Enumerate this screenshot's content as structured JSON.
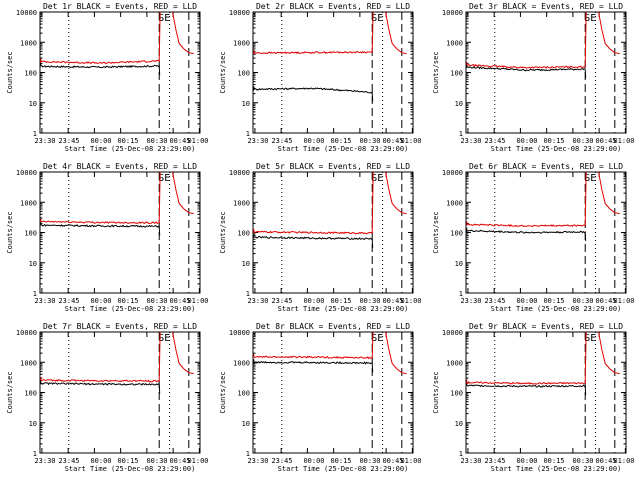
{
  "figure": {
    "background": "#ffffff"
  },
  "colors": {
    "events": "#000000",
    "lld": "#e00000",
    "axes": "#000000"
  },
  "chart_data": [
    {
      "type": "line",
      "title": "Det 1r BLACK = Events, RED = LLD",
      "xlabel": "Start Time (25-Dec-08 23:29:00)",
      "ylabel": "Counts/sec",
      "yscale": "log",
      "ylim": [
        1,
        10000
      ],
      "x_tick_labels": [
        "23:30",
        "23:45",
        "00:00",
        "00:15",
        "00:30",
        "00:45",
        "01:00"
      ],
      "y_tick_labels": [
        "1",
        "10",
        "100",
        "1000",
        "10000"
      ],
      "annotations": [
        "SE"
      ],
      "series": [
        {
          "color": "#000000",
          "start": 160,
          "mid": 150,
          "end": 165
        },
        {
          "color": "#e00000",
          "start": 230,
          "mid": 205,
          "end": 240
        }
      ]
    },
    {
      "type": "line",
      "title": "Det 2r BLACK = Events, RED = LLD",
      "xlabel": "Start Time (25-Dec-08 23:29:00)",
      "ylabel": "Counts/sec",
      "yscale": "log",
      "ylim": [
        1,
        10000
      ],
      "x_tick_labels": [
        "23:30",
        "23:45",
        "00:00",
        "00:15",
        "00:30",
        "00:45",
        "01:00"
      ],
      "y_tick_labels": [
        "1",
        "10",
        "100",
        "1000",
        "10000"
      ],
      "annotations": [
        "SE"
      ],
      "series": [
        {
          "color": "#000000",
          "start": 28,
          "mid": 30,
          "end": 22
        },
        {
          "color": "#e00000",
          "start": 440,
          "mid": 460,
          "end": 470
        }
      ]
    },
    {
      "type": "line",
      "title": "Det 3r BLACK = Events, RED = LLD",
      "xlabel": "Start Time (25-Dec-08 23:29:00)",
      "ylabel": "Counts/sec",
      "yscale": "log",
      "ylim": [
        1,
        10000
      ],
      "x_tick_labels": [
        "23:30",
        "23:45",
        "00:00",
        "00:15",
        "00:30",
        "00:45",
        "01:00"
      ],
      "y_tick_labels": [
        "1",
        "10",
        "100",
        "1000",
        "10000"
      ],
      "annotations": [
        "SE"
      ],
      "series": [
        {
          "color": "#000000",
          "start": 150,
          "mid": 120,
          "end": 130
        },
        {
          "color": "#e00000",
          "start": 175,
          "mid": 145,
          "end": 155
        }
      ]
    },
    {
      "type": "line",
      "title": "Det 4r BLACK = Events, RED = LLD",
      "xlabel": "Start Time (25-Dec-08 23:29:00)",
      "ylabel": "Counts/sec",
      "yscale": "log",
      "ylim": [
        1,
        10000
      ],
      "x_tick_labels": [
        "23:30",
        "23:45",
        "00:00",
        "00:15",
        "00:30",
        "00:45",
        "01:00"
      ],
      "y_tick_labels": [
        "1",
        "10",
        "100",
        "1000",
        "10000"
      ],
      "annotations": [
        "SE"
      ],
      "series": [
        {
          "color": "#000000",
          "start": 175,
          "mid": 165,
          "end": 160
        },
        {
          "color": "#e00000",
          "start": 230,
          "mid": 215,
          "end": 210
        }
      ]
    },
    {
      "type": "line",
      "title": "Det 5r BLACK = Events, RED = LLD",
      "xlabel": "Start Time (25-Dec-08 23:29:00)",
      "ylabel": "Counts/sec",
      "yscale": "log",
      "ylim": [
        1,
        10000
      ],
      "x_tick_labels": [
        "23:30",
        "23:45",
        "00:00",
        "00:15",
        "00:30",
        "00:45",
        "01:00"
      ],
      "y_tick_labels": [
        "1",
        "10",
        "100",
        "1000",
        "10000"
      ],
      "annotations": [
        "SE"
      ],
      "series": [
        {
          "color": "#000000",
          "start": 70,
          "mid": 65,
          "end": 62
        },
        {
          "color": "#e00000",
          "start": 105,
          "mid": 100,
          "end": 95
        }
      ]
    },
    {
      "type": "line",
      "title": "Det 6r BLACK = Events, RED = LLD",
      "xlabel": "Start Time (25-Dec-08 23:29:00)",
      "ylabel": "Counts/sec",
      "yscale": "log",
      "ylim": [
        1,
        10000
      ],
      "x_tick_labels": [
        "23:30",
        "23:45",
        "00:00",
        "00:15",
        "00:30",
        "00:45",
        "01:00"
      ],
      "y_tick_labels": [
        "1",
        "10",
        "100",
        "1000",
        "10000"
      ],
      "annotations": [
        "SE"
      ],
      "series": [
        {
          "color": "#000000",
          "start": 115,
          "mid": 100,
          "end": 105
        },
        {
          "color": "#e00000",
          "start": 185,
          "mid": 165,
          "end": 170
        }
      ]
    },
    {
      "type": "line",
      "title": "Det 7r BLACK = Events, RED = LLD",
      "xlabel": "Start Time (25-Dec-08 23:29:00)",
      "ylabel": "Counts/sec",
      "yscale": "log",
      "ylim": [
        1,
        10000
      ],
      "x_tick_labels": [
        "23:30",
        "23:45",
        "00:00",
        "00:15",
        "00:30",
        "00:45",
        "01:00"
      ],
      "y_tick_labels": [
        "1",
        "10",
        "100",
        "1000",
        "10000"
      ],
      "annotations": [
        "SE"
      ],
      "series": [
        {
          "color": "#000000",
          "start": 200,
          "mid": 190,
          "end": 185
        },
        {
          "color": "#e00000",
          "start": 255,
          "mid": 245,
          "end": 240
        }
      ]
    },
    {
      "type": "line",
      "title": "Det 8r BLACK = Events, RED = LLD",
      "xlabel": "Start Time (25-Dec-08 23:29:00)",
      "ylabel": "Counts/sec",
      "yscale": "log",
      "ylim": [
        1,
        10000
      ],
      "x_tick_labels": [
        "23:30",
        "23:45",
        "00:00",
        "00:15",
        "00:30",
        "00:45",
        "01:00"
      ],
      "y_tick_labels": [
        "1",
        "10",
        "100",
        "1000",
        "10000"
      ],
      "annotations": [
        "SE"
      ],
      "series": [
        {
          "color": "#000000",
          "start": 1000,
          "mid": 980,
          "end": 940
        },
        {
          "color": "#e00000",
          "start": 1500,
          "mid": 1480,
          "end": 1400
        }
      ]
    },
    {
      "type": "line",
      "title": "Det 9r BLACK = Events, RED = LLD",
      "xlabel": "Start Time (25-Dec-08 23:29:00)",
      "ylabel": "Counts/sec",
      "yscale": "log",
      "ylim": [
        1,
        10000
      ],
      "x_tick_labels": [
        "23:30",
        "23:45",
        "00:00",
        "00:15",
        "00:30",
        "00:45",
        "01:00"
      ],
      "y_tick_labels": [
        "1",
        "10",
        "100",
        "1000",
        "10000"
      ],
      "annotations": [
        "SE"
      ],
      "series": [
        {
          "color": "#000000",
          "start": 170,
          "mid": 160,
          "end": 165
        },
        {
          "color": "#e00000",
          "start": 215,
          "mid": 200,
          "end": 205
        }
      ]
    }
  ]
}
